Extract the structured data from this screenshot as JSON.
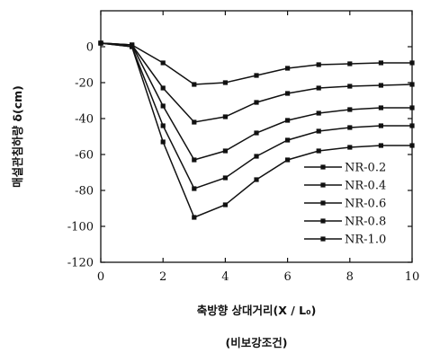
{
  "chart_data": {
    "type": "line",
    "title": "",
    "xlabel": "축방향 상대거리(X / L₀)",
    "ylabel": "매설관침하량 δ(cm)",
    "caption": "(비보강조건)",
    "xlim": [
      0,
      10
    ],
    "ylim": [
      -120,
      20
    ],
    "x_ticks": [
      "0",
      "2",
      "4",
      "6",
      "8",
      "10"
    ],
    "y_ticks": [
      "0",
      "-20",
      "-40",
      "-60",
      "-80",
      "-100",
      "-120"
    ],
    "legend_position": "bottom-right",
    "grid": false,
    "x": [
      0,
      1,
      2,
      3,
      4,
      5,
      6,
      7,
      8,
      9,
      10
    ],
    "series": [
      {
        "name": "NR-0.2",
        "values": [
          2,
          1,
          -9,
          -21,
          -20,
          -16,
          -12,
          -10,
          -9.5,
          -9,
          -9
        ]
      },
      {
        "name": "NR-0.4",
        "values": [
          2,
          1,
          -23,
          -42,
          -39,
          -31,
          -26,
          -23,
          -22,
          -21.5,
          -21
        ]
      },
      {
        "name": "NR-0.6",
        "values": [
          2,
          1,
          -33,
          -63,
          -58,
          -48,
          -41,
          -37,
          -35,
          -34,
          -34
        ]
      },
      {
        "name": "NR-0.8",
        "values": [
          2,
          0,
          -44,
          -79,
          -73,
          -61,
          -52,
          -47,
          -45,
          -44,
          -44
        ]
      },
      {
        "name": "NR-1.0",
        "values": [
          2,
          0,
          -53,
          -95,
          -88,
          -74,
          -63,
          -58,
          -56,
          -55,
          -55
        ]
      }
    ]
  }
}
